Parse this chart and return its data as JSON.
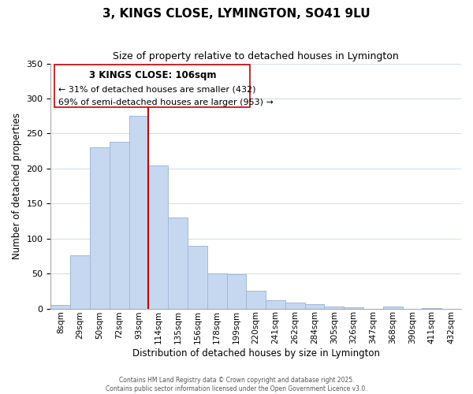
{
  "title": "3, KINGS CLOSE, LYMINGTON, SO41 9LU",
  "subtitle": "Size of property relative to detached houses in Lymington",
  "xlabel": "Distribution of detached houses by size in Lymington",
  "ylabel": "Number of detached properties",
  "footnote1": "Contains HM Land Registry data © Crown copyright and database right 2025.",
  "footnote2": "Contains public sector information licensed under the Open Government Licence v3.0.",
  "bar_labels": [
    "8sqm",
    "29sqm",
    "50sqm",
    "72sqm",
    "93sqm",
    "114sqm",
    "135sqm",
    "156sqm",
    "178sqm",
    "199sqm",
    "220sqm",
    "241sqm",
    "262sqm",
    "284sqm",
    "305sqm",
    "326sqm",
    "347sqm",
    "368sqm",
    "390sqm",
    "411sqm",
    "432sqm"
  ],
  "bar_values": [
    5,
    76,
    230,
    238,
    275,
    204,
    130,
    89,
    50,
    49,
    25,
    12,
    9,
    6,
    3,
    2,
    0,
    3,
    0,
    1,
    0
  ],
  "bar_color": "#c5d8f0",
  "bar_edge_color": "#a0b8d8",
  "vline_x": 4.5,
  "vline_color": "#cc0000",
  "ylim": [
    0,
    350
  ],
  "yticks": [
    0,
    50,
    100,
    150,
    200,
    250,
    300,
    350
  ],
  "annotation_title": "3 KINGS CLOSE: 106sqm",
  "annotation_line1": "← 31% of detached houses are smaller (432)",
  "annotation_line2": "69% of semi-detached houses are larger (953) →",
  "bg_color": "#ffffff",
  "grid_color": "#d0e0f0"
}
